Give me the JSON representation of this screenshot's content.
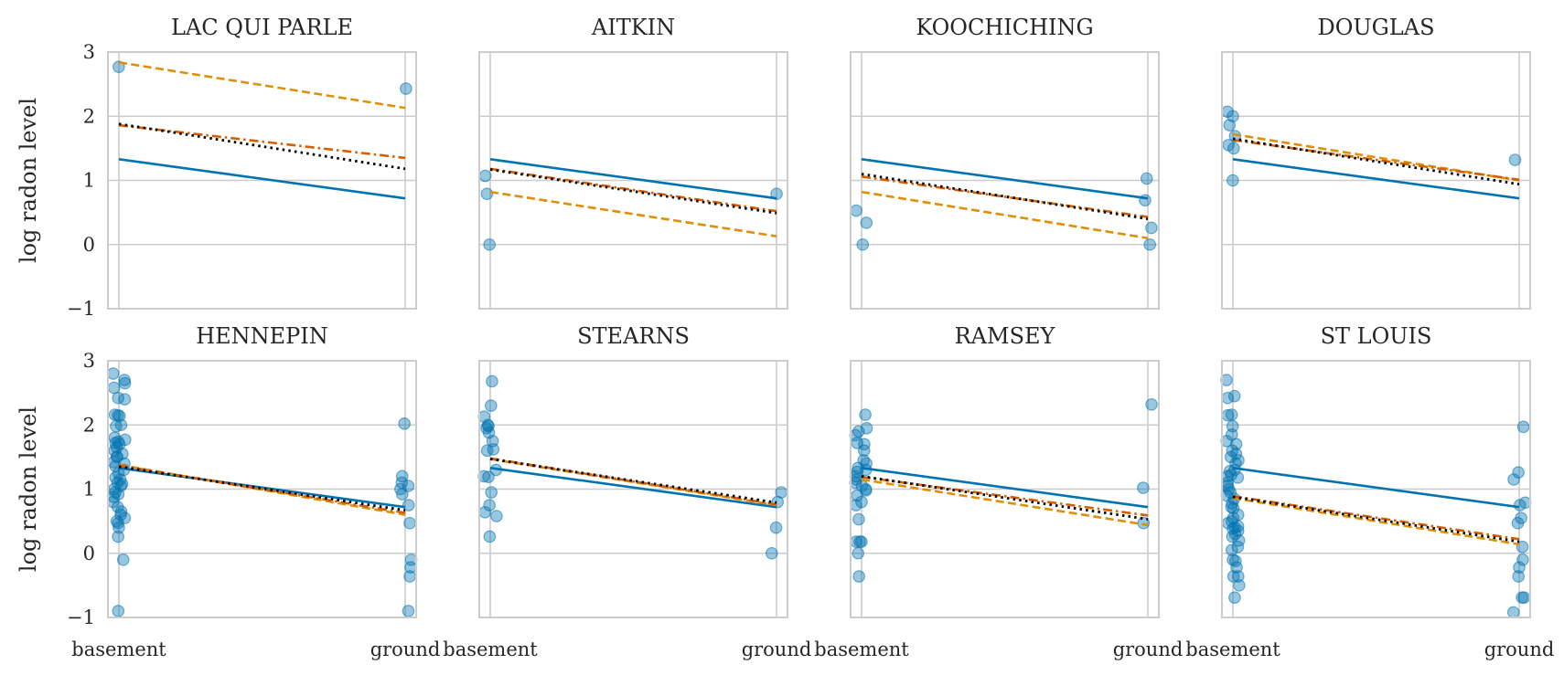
{
  "chart_data": {
    "type": "scatter",
    "layout": "2x4 small multiples, shared x and y axes",
    "ylabel": "log radon level",
    "x_categories": [
      "basement",
      "ground"
    ],
    "ylim": [
      -1,
      3
    ],
    "yticks": [
      "−1",
      "0",
      "1",
      "2",
      "3"
    ],
    "grid": true,
    "colors": {
      "points": "#0173b2",
      "solid": "#0173b2",
      "dashed": "#de8f05",
      "dashdot": "#d55e00",
      "dotted": "#000000"
    },
    "line_styles": [
      "solid",
      "dashed",
      "dashdot",
      "dotted"
    ],
    "panels": [
      {
        "title": "LAC QUI PARLE",
        "points": [
          [
            0,
            2.77
          ],
          [
            1,
            2.43
          ]
        ],
        "lines": {
          "solid": [
            1.33,
            0.72
          ],
          "dashed": [
            2.84,
            2.13
          ],
          "dashdot": [
            1.86,
            1.35
          ],
          "dotted": [
            1.88,
            1.18
          ]
        }
      },
      {
        "title": "AITKIN",
        "points": [
          [
            0,
            1.07
          ],
          [
            0,
            0.79
          ],
          [
            0,
            0.0
          ],
          [
            1,
            0.79
          ]
        ],
        "lines": {
          "solid": [
            1.33,
            0.72
          ],
          "dashed": [
            0.82,
            0.13
          ],
          "dashdot": [
            1.18,
            0.52
          ],
          "dotted": [
            1.17,
            0.49
          ]
        }
      },
      {
        "title": "KOOCHICHING",
        "points": [
          [
            0,
            0.53
          ],
          [
            0,
            0.34
          ],
          [
            0,
            0.0
          ],
          [
            1,
            1.03
          ],
          [
            1,
            0.69
          ],
          [
            1,
            0.26
          ],
          [
            1,
            0.0
          ]
        ],
        "lines": {
          "solid": [
            1.33,
            0.72
          ],
          "dashed": [
            0.82,
            0.1
          ],
          "dashdot": [
            1.06,
            0.43
          ],
          "dotted": [
            1.1,
            0.4
          ]
        }
      },
      {
        "title": "DOUGLAS",
        "points": [
          [
            0,
            2.07
          ],
          [
            0,
            2.0
          ],
          [
            0,
            1.86
          ],
          [
            0,
            1.69
          ],
          [
            0,
            1.55
          ],
          [
            0,
            1.5
          ],
          [
            0,
            1.0
          ],
          [
            1,
            1.32
          ]
        ],
        "lines": {
          "solid": [
            1.33,
            0.72
          ],
          "dashed": [
            1.72,
            1.0
          ],
          "dashdot": [
            1.63,
            1.01
          ],
          "dotted": [
            1.65,
            0.94
          ]
        }
      },
      {
        "title": "HENNEPIN",
        "points": [
          [
            0,
            2.8
          ],
          [
            0,
            2.7
          ],
          [
            0,
            2.65
          ],
          [
            0,
            2.58
          ],
          [
            0,
            2.42
          ],
          [
            0,
            2.4
          ],
          [
            0,
            2.16
          ],
          [
            0,
            2.15
          ],
          [
            0,
            2.14
          ],
          [
            0,
            2.0
          ],
          [
            0,
            1.98
          ],
          [
            0,
            1.8
          ],
          [
            0,
            1.77
          ],
          [
            0,
            1.74
          ],
          [
            0,
            1.72
          ],
          [
            0,
            1.7
          ],
          [
            0,
            1.65
          ],
          [
            0,
            1.6
          ],
          [
            0,
            1.55
          ],
          [
            0,
            1.51
          ],
          [
            0,
            1.5
          ],
          [
            0,
            1.42
          ],
          [
            0,
            1.4
          ],
          [
            0,
            1.36
          ],
          [
            0,
            1.3
          ],
          [
            0,
            1.25
          ],
          [
            0,
            1.18
          ],
          [
            0,
            1.15
          ],
          [
            0,
            1.1
          ],
          [
            0,
            1.08
          ],
          [
            0,
            1.05
          ],
          [
            0,
            1.0
          ],
          [
            0,
            0.95
          ],
          [
            0,
            0.92
          ],
          [
            0,
            0.88
          ],
          [
            0,
            0.8
          ],
          [
            0,
            0.72
          ],
          [
            0,
            0.65
          ],
          [
            0,
            0.6
          ],
          [
            0,
            0.55
          ],
          [
            0,
            0.5
          ],
          [
            0,
            0.47
          ],
          [
            0,
            0.4
          ],
          [
            0,
            0.26
          ],
          [
            0,
            -0.1
          ],
          [
            0,
            -0.9
          ],
          [
            1,
            2.02
          ],
          [
            1,
            1.2
          ],
          [
            1,
            1.1
          ],
          [
            1,
            1.05
          ],
          [
            1,
            1.0
          ],
          [
            1,
            0.92
          ],
          [
            1,
            0.75
          ],
          [
            1,
            0.47
          ],
          [
            1,
            -0.1
          ],
          [
            1,
            -0.22
          ],
          [
            1,
            -0.36
          ],
          [
            1,
            -0.9
          ]
        ],
        "lines": {
          "solid": [
            1.33,
            0.72
          ],
          "dashed": [
            1.38,
            0.6
          ],
          "dashdot": [
            1.37,
            0.63
          ],
          "dotted": [
            1.35,
            0.67
          ]
        }
      },
      {
        "title": "STEARNS",
        "points": [
          [
            0,
            2.68
          ],
          [
            0,
            2.3
          ],
          [
            0,
            2.13
          ],
          [
            0,
            2.0
          ],
          [
            0,
            1.98
          ],
          [
            0,
            1.95
          ],
          [
            0,
            1.88
          ],
          [
            0,
            1.75
          ],
          [
            0,
            1.62
          ],
          [
            0,
            1.6
          ],
          [
            0,
            1.3
          ],
          [
            0,
            1.2
          ],
          [
            0,
            1.19
          ],
          [
            0,
            0.95
          ],
          [
            0,
            0.75
          ],
          [
            0,
            0.64
          ],
          [
            0,
            0.58
          ],
          [
            0,
            0.26
          ],
          [
            1,
            0.95
          ],
          [
            1,
            0.8
          ],
          [
            1,
            0.4
          ],
          [
            1,
            0.0
          ]
        ],
        "lines": {
          "solid": [
            1.33,
            0.72
          ],
          "dashed": [
            1.47,
            0.75
          ],
          "dashdot": [
            1.48,
            0.76
          ],
          "dotted": [
            1.47,
            0.79
          ]
        }
      },
      {
        "title": "RAMSEY",
        "points": [
          [
            0,
            2.16
          ],
          [
            0,
            1.95
          ],
          [
            0,
            1.9
          ],
          [
            0,
            1.84
          ],
          [
            0,
            1.72
          ],
          [
            0,
            1.7
          ],
          [
            0,
            1.6
          ],
          [
            0,
            1.45
          ],
          [
            0,
            1.4
          ],
          [
            0,
            1.33
          ],
          [
            0,
            1.3
          ],
          [
            0,
            1.27
          ],
          [
            0,
            1.2
          ],
          [
            0,
            1.15
          ],
          [
            0,
            1.1
          ],
          [
            0,
            1.05
          ],
          [
            0,
            1.0
          ],
          [
            0,
            0.98
          ],
          [
            0,
            0.9
          ],
          [
            0,
            0.8
          ],
          [
            0,
            0.75
          ],
          [
            0,
            0.53
          ],
          [
            0,
            0.18
          ],
          [
            0,
            0.18
          ],
          [
            0,
            0.18
          ],
          [
            0,
            0.0
          ],
          [
            0,
            -0.36
          ],
          [
            1,
            2.32
          ],
          [
            1,
            1.02
          ],
          [
            1,
            0.47
          ]
        ],
        "lines": {
          "solid": [
            1.33,
            0.72
          ],
          "dashed": [
            1.15,
            0.44
          ],
          "dashdot": [
            1.19,
            0.59
          ],
          "dotted": [
            1.2,
            0.53
          ]
        }
      },
      {
        "title": "ST LOUIS",
        "points": [
          [
            0,
            2.7
          ],
          [
            0,
            2.45
          ],
          [
            0,
            2.42
          ],
          [
            0,
            2.16
          ],
          [
            0,
            2.15
          ],
          [
            0,
            1.98
          ],
          [
            0,
            1.85
          ],
          [
            0,
            1.75
          ],
          [
            0,
            1.7
          ],
          [
            0,
            1.6
          ],
          [
            0,
            1.55
          ],
          [
            0,
            1.5
          ],
          [
            0,
            1.45
          ],
          [
            0,
            1.4
          ],
          [
            0,
            1.3
          ],
          [
            0,
            1.28
          ],
          [
            0,
            1.22
          ],
          [
            0,
            1.2
          ],
          [
            0,
            1.18
          ],
          [
            0,
            1.1
          ],
          [
            0,
            1.05
          ],
          [
            0,
            1.0
          ],
          [
            0,
            0.95
          ],
          [
            0,
            0.9
          ],
          [
            0,
            0.85
          ],
          [
            0,
            0.78
          ],
          [
            0,
            0.72
          ],
          [
            0,
            0.7
          ],
          [
            0,
            0.6
          ],
          [
            0,
            0.55
          ],
          [
            0,
            0.5
          ],
          [
            0,
            0.47
          ],
          [
            0,
            0.42
          ],
          [
            0,
            0.4
          ],
          [
            0,
            0.38
          ],
          [
            0,
            0.35
          ],
          [
            0,
            0.3
          ],
          [
            0,
            0.26
          ],
          [
            0,
            0.2
          ],
          [
            0,
            0.1
          ],
          [
            0,
            0.05
          ],
          [
            0,
            -0.1
          ],
          [
            0,
            -0.12
          ],
          [
            0,
            -0.22
          ],
          [
            0,
            -0.36
          ],
          [
            0,
            -0.36
          ],
          [
            0,
            -0.5
          ],
          [
            0,
            -0.69
          ],
          [
            1,
            1.97
          ],
          [
            1,
            1.26
          ],
          [
            1,
            1.15
          ],
          [
            1,
            0.79
          ],
          [
            1,
            0.75
          ],
          [
            1,
            0.55
          ],
          [
            1,
            0.47
          ],
          [
            1,
            0.1
          ],
          [
            1,
            -0.1
          ],
          [
            1,
            -0.22
          ],
          [
            1,
            -0.36
          ],
          [
            1,
            -0.69
          ],
          [
            1,
            -0.69
          ],
          [
            1,
            -0.92
          ]
        ],
        "lines": {
          "solid": [
            1.33,
            0.72
          ],
          "dashed": [
            0.86,
            0.14
          ],
          "dashdot": [
            0.89,
            0.22
          ],
          "dotted": [
            0.88,
            0.18
          ]
        }
      }
    ]
  }
}
